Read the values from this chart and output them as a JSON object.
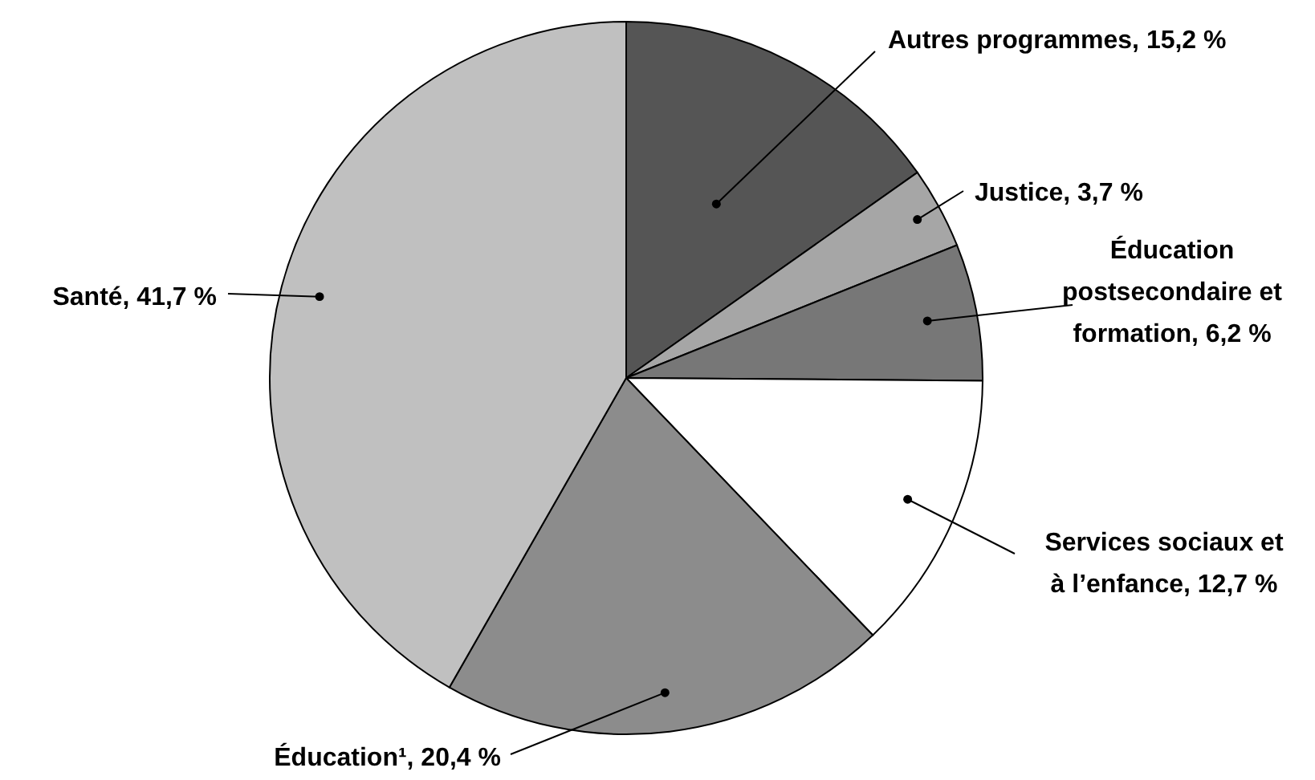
{
  "chart_data": {
    "type": "pie",
    "categories": [
      "Autres programmes",
      "Justice",
      "Éducation postsecondaire et formation",
      "Services sociaux et à l’enfance",
      "Éducation¹",
      "Santé"
    ],
    "values": [
      15.2,
      3.7,
      6.2,
      12.7,
      20.4,
      41.7
    ],
    "value_labels": [
      "15,2 %",
      "3,7 %",
      "6,2 %",
      "12,7 %",
      "20,4 %",
      "41,7 %"
    ],
    "colors": [
      "#555555",
      "#a6a6a6",
      "#777777",
      "#ffffff",
      "#8c8c8c",
      "#c0c0c0"
    ]
  }
}
